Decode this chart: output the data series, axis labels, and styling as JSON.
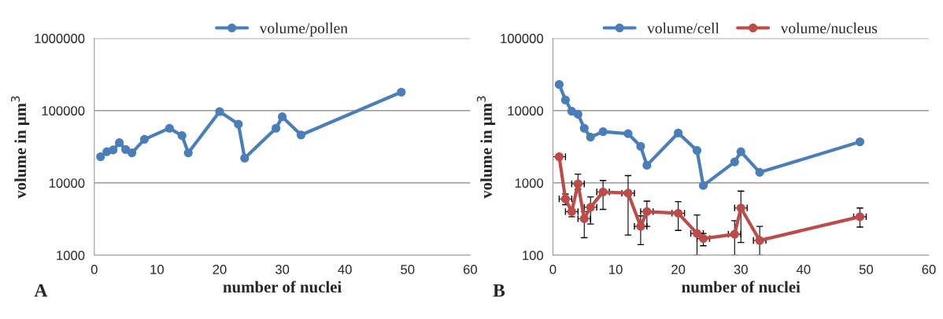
{
  "chart_data": [
    {
      "type": "line",
      "xlabel": "number of nuclei",
      "ylabel": "volume in μm$^{3}$",
      "log": "y",
      "xlim": [
        0,
        60
      ],
      "xticks": [
        0,
        10,
        20,
        30,
        40,
        50,
        60
      ],
      "ylim": [
        1000,
        1000000
      ],
      "yticks": [
        1000,
        10000,
        100000,
        1000000
      ],
      "grid": "y",
      "legend": "top",
      "marker": "circle",
      "annotations": [
        "A"
      ],
      "x": [
        1,
        2,
        3,
        4,
        5,
        6,
        8,
        12,
        14,
        15,
        20,
        23,
        24,
        29,
        30,
        33,
        49
      ],
      "series": [
        {
          "name": "volume/pollen",
          "color": "#4a7ebb",
          "values": [
            23000,
            27000,
            28500,
            36000,
            29000,
            26000,
            40000,
            57000,
            45000,
            26000,
            97000,
            65000,
            22000,
            57000,
            82000,
            46000,
            180000
          ]
        }
      ]
    },
    {
      "type": "line",
      "xlabel": "number of nuclei",
      "ylabel": "volume in μm$^{3}$",
      "log": "y",
      "xlim": [
        0,
        60
      ],
      "xticks": [
        0,
        10,
        20,
        30,
        40,
        50,
        60
      ],
      "ylim": [
        100,
        100000
      ],
      "yticks": [
        100,
        1000,
        10000,
        100000
      ],
      "grid": "y",
      "legend": "top",
      "marker": "circle",
      "annotations": [
        "B"
      ],
      "x": [
        1,
        2,
        3,
        4,
        5,
        6,
        8,
        12,
        14,
        15,
        20,
        23,
        24,
        29,
        30,
        33,
        49
      ],
      "series": [
        {
          "name": "volume/cell",
          "color": "#4a7ebb",
          "values": [
            23000,
            14000,
            9800,
            8900,
            5700,
            4300,
            5100,
            4800,
            3200,
            1750,
            4900,
            2800,
            920,
            1950,
            2700,
            1400,
            3700
          ]
        },
        {
          "name": "volume/nucleus",
          "color": "#be4b48",
          "values": [
            2300,
            600,
            400,
            970,
            320,
            460,
            750,
            720,
            250,
            400,
            380,
            200,
            170,
            195,
            450,
            160,
            340
          ],
          "errors": [
            null,
            [
              500,
              700
            ],
            [
              340,
              430
            ],
            [
              820,
              1320
            ],
            [
              175,
              400
            ],
            [
              270,
              640
            ],
            [
              430,
              1080
            ],
            [
              190,
              1260
            ],
            [
              140,
              350
            ],
            [
              250,
              560
            ],
            [
              220,
              550
            ],
            [
              100,
              360
            ],
            [
              135,
              200
            ],
            [
              100,
              300
            ],
            [
              150,
              770
            ],
            [
              100,
              250
            ],
            [
              245,
              450
            ]
          ],
          "xerrors": [
            1,
            1,
            1,
            1,
            1,
            1,
            1,
            1,
            1,
            1,
            1,
            1,
            1,
            1,
            1,
            1,
            1
          ]
        }
      ]
    }
  ]
}
